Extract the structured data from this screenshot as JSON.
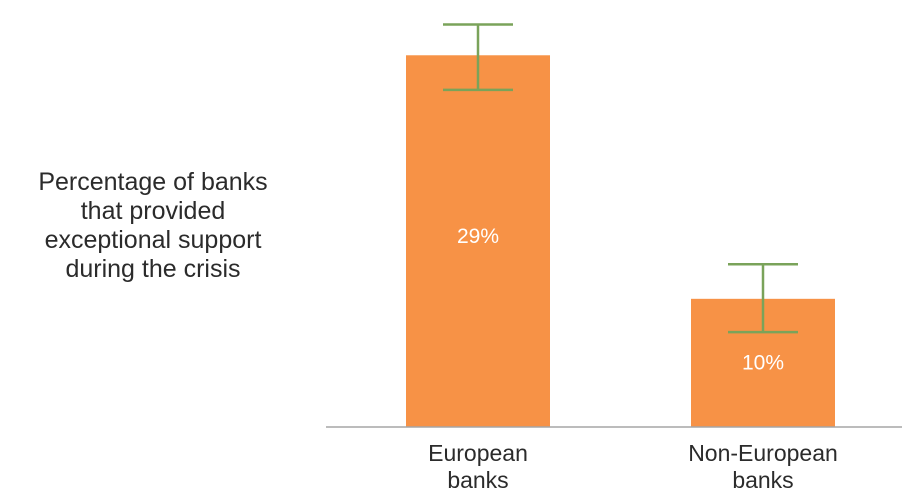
{
  "chart_data": {
    "type": "bar",
    "categories": [
      [
        "European",
        "banks"
      ],
      [
        "Non-European",
        "banks"
      ]
    ],
    "values": [
      29,
      10
    ],
    "value_labels": [
      "29%",
      "10%"
    ],
    "error_bars": [
      {
        "low": 26.3,
        "high": 31.4
      },
      {
        "low": 7.4,
        "high": 12.7
      }
    ],
    "ylabel_lines": [
      "Percentage of banks",
      "that provided",
      "exceptional support",
      "during the crisis"
    ],
    "ylim": [
      0,
      33
    ],
    "colors": {
      "bar": "#f79246",
      "error_bar": "#7aa35a",
      "axis": "#a5a5a5",
      "label_text": "#2b2b2b",
      "value_text": "#ffffff"
    }
  }
}
